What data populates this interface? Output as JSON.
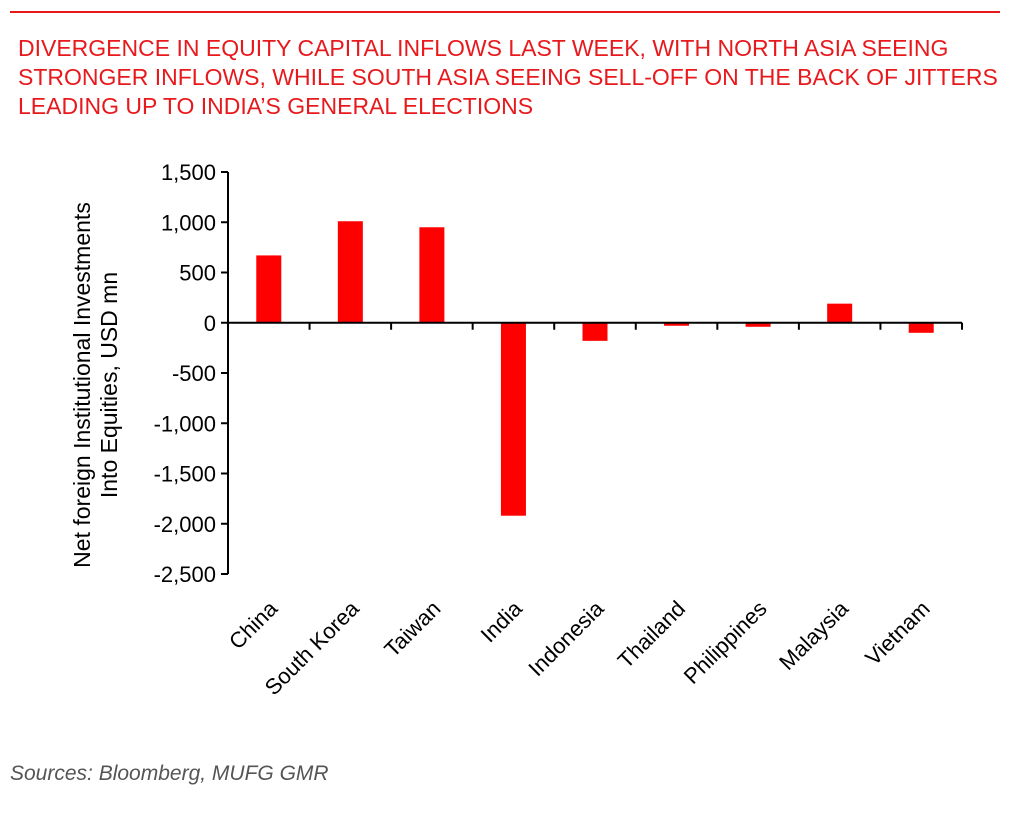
{
  "title": "DIVERGENCE IN EQUITY CAPITAL INFLOWS LAST WEEK, WITH NORTH ASIA SEEING STRONGER INFLOWS, WHILE SOUTH ASIA SEEING SELL-OFF ON THE BACK OF JITTERS LEADING UP TO INDIA’S GENERAL ELECTIONS",
  "source": "Sources:  Bloomberg, MUFG GMR",
  "colors": {
    "accent": "#e8191c",
    "bar": "#ff0000",
    "source_text": "#555555"
  },
  "chart_data": {
    "type": "bar",
    "categories": [
      "China",
      "South Korea",
      "Taiwan",
      "India",
      "Indonesia",
      "Thailand",
      "Philippines",
      "Malaysia",
      "Vietnam"
    ],
    "values": [
      670,
      1010,
      950,
      -1920,
      -180,
      -30,
      -40,
      190,
      -100
    ],
    "ylabel_lines": [
      "Net foreign Institutional Investments",
      "Into Equities, USD mn"
    ],
    "ylim": [
      -2500,
      1500
    ],
    "yticks": [
      1500,
      1000,
      500,
      0,
      -500,
      -1000,
      -1500,
      -2000,
      -2500
    ],
    "ytick_labels": [
      "1,500",
      "1,000",
      "500",
      "0",
      "-500",
      "-1,000",
      "-1,500",
      "-2,000",
      "-2,500"
    ],
    "grid": false,
    "legend": "none"
  }
}
